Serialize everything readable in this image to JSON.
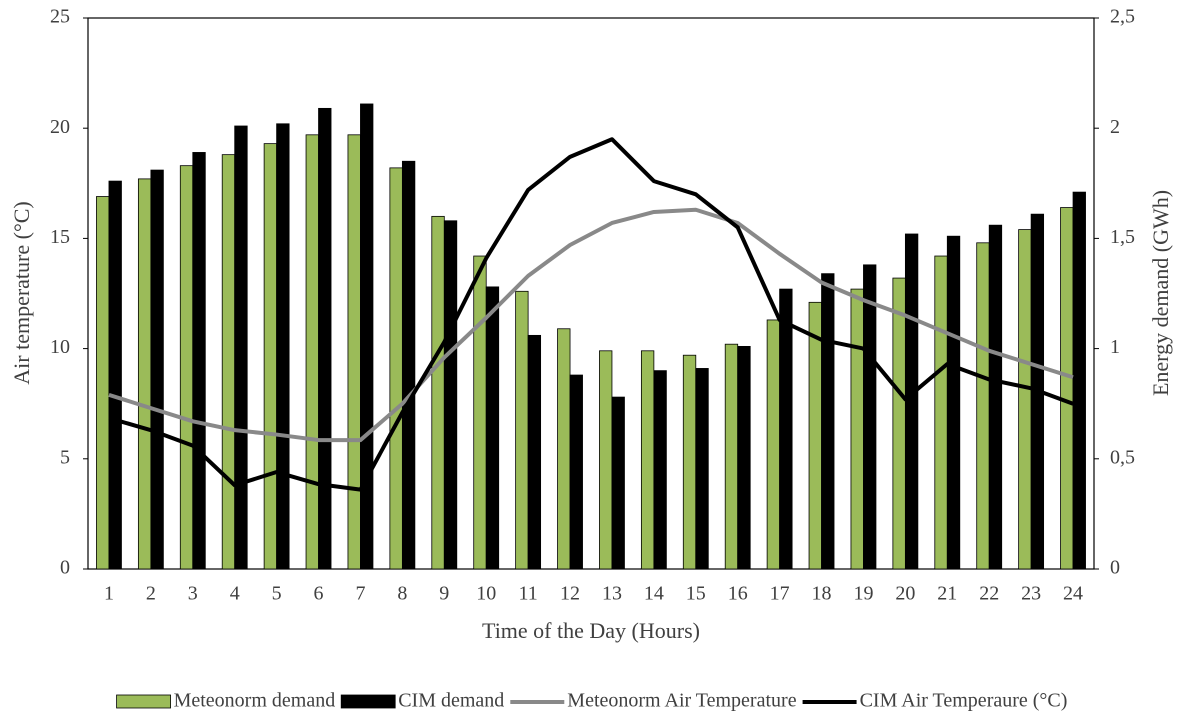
{
  "chart_data": {
    "type": "bar",
    "x_label": "Time of the Day (Hours)",
    "y_label": "Air temperature (°C)",
    "y2_label": "Energy demand (GWh)",
    "categories": [
      "1",
      "2",
      "3",
      "4",
      "5",
      "6",
      "7",
      "8",
      "9",
      "10",
      "11",
      "12",
      "13",
      "14",
      "15",
      "16",
      "17",
      "18",
      "19",
      "20",
      "21",
      "22",
      "23",
      "24"
    ],
    "ylim": [
      0,
      25
    ],
    "yticks": [
      0,
      5,
      10,
      15,
      20,
      25
    ],
    "y2lim": [
      0,
      2.5
    ],
    "y2ticks": [
      0,
      {
        "value": 0.5,
        "label": "0,5"
      },
      1,
      {
        "value": 1.5,
        "label": "1,5"
      },
      2,
      {
        "value": 2.5,
        "label": "2,5"
      }
    ],
    "legend": "bottom",
    "series": [
      {
        "name": "Meteonorm demand",
        "type": "bar",
        "axis": "y2",
        "color": "#9bbb59",
        "values": [
          1.69,
          1.77,
          1.83,
          1.88,
          1.93,
          1.97,
          1.97,
          1.82,
          1.6,
          1.42,
          1.26,
          1.09,
          0.99,
          0.99,
          0.97,
          1.02,
          1.13,
          1.21,
          1.27,
          1.32,
          1.42,
          1.48,
          1.54,
          1.64
        ]
      },
      {
        "name": "CIM demand",
        "type": "bar",
        "axis": "y2",
        "color": "#000000",
        "values": [
          1.76,
          1.81,
          1.89,
          2.01,
          2.02,
          2.09,
          2.11,
          1.85,
          1.58,
          1.28,
          1.06,
          0.88,
          0.78,
          0.9,
          0.91,
          1.01,
          1.27,
          1.34,
          1.38,
          1.52,
          1.51,
          1.56,
          1.61,
          1.71
        ]
      },
      {
        "name": "Meteonorm Air Temperature",
        "type": "line",
        "color": "#898989",
        "values": [
          7.9,
          7.3,
          6.7,
          6.3,
          6.1,
          5.85,
          5.85,
          7.5,
          9.6,
          11.4,
          13.3,
          14.7,
          15.7,
          16.2,
          16.3,
          15.7,
          14.3,
          13.0,
          12.2,
          11.5,
          10.7,
          9.9,
          9.3,
          8.7
        ]
      },
      {
        "name": "CIM Air Temperaure (°C)",
        "type": "line",
        "color": "#000000",
        "values": [
          6.85,
          6.3,
          5.6,
          3.8,
          4.4,
          3.85,
          3.6,
          7.1,
          10.3,
          14.1,
          17.2,
          18.7,
          19.5,
          17.6,
          17.0,
          15.5,
          11.3,
          10.4,
          10.0,
          7.7,
          9.3,
          8.6,
          8.2,
          7.5
        ]
      }
    ]
  }
}
